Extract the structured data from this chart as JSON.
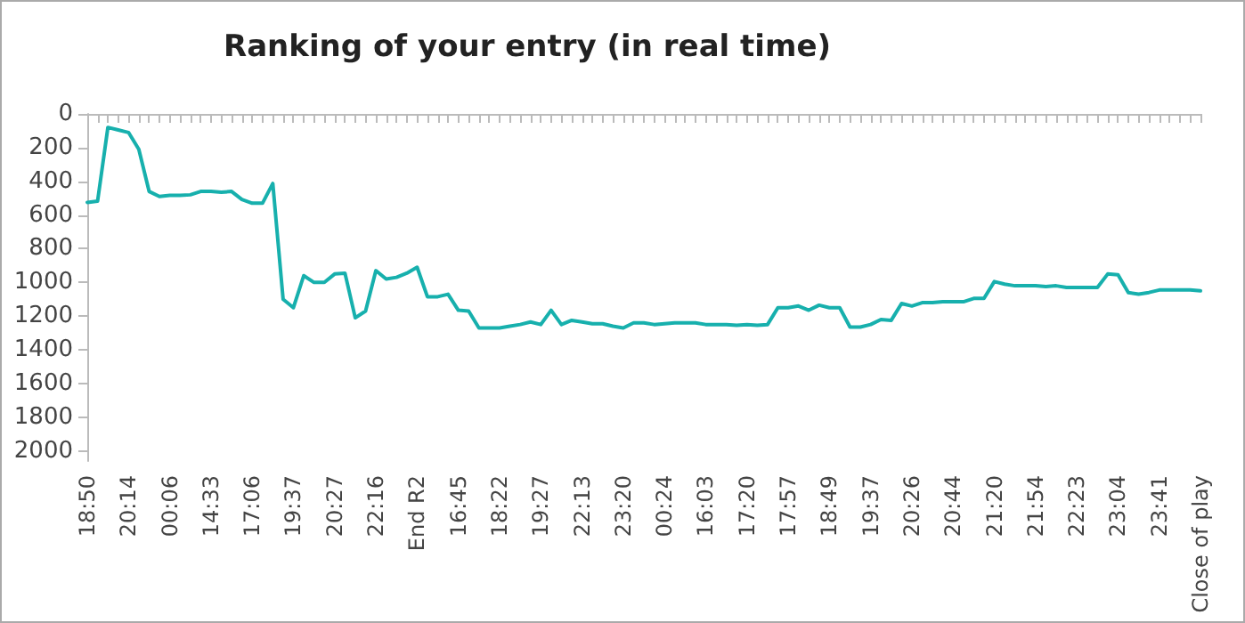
{
  "chart_data": {
    "type": "line",
    "title": "Ranking of your entry (in real time)",
    "categories": [
      "18:50",
      null,
      null,
      null,
      "20:14",
      null,
      null,
      null,
      "00:06",
      null,
      null,
      null,
      "14:33",
      null,
      null,
      null,
      "17:06",
      null,
      null,
      null,
      "19:37",
      null,
      null,
      null,
      "20:27",
      null,
      null,
      null,
      "22:16",
      null,
      null,
      null,
      "End R2",
      null,
      null,
      null,
      "16:45",
      null,
      null,
      null,
      "18:22",
      null,
      null,
      null,
      "19:27",
      null,
      null,
      null,
      "22:13",
      null,
      null,
      null,
      "23:20",
      null,
      null,
      null,
      "00:24",
      null,
      null,
      null,
      "16:03",
      null,
      null,
      null,
      "17:20",
      null,
      null,
      null,
      "17:57",
      null,
      null,
      null,
      "18:49",
      null,
      null,
      null,
      "19:37",
      null,
      null,
      null,
      "20:26",
      null,
      null,
      null,
      "20:44",
      null,
      null,
      null,
      "21:20",
      null,
      null,
      null,
      "21:54",
      null,
      null,
      null,
      "22:23",
      null,
      null,
      null,
      "23:04",
      null,
      null,
      null,
      "23:41",
      null,
      null,
      null,
      "Close of play"
    ],
    "series": [
      {
        "color": "#17b0ad",
        "values": [
          525,
          518,
          80,
          95,
          110,
          210,
          460,
          490,
          483,
          483,
          480,
          460,
          460,
          465,
          460,
          508,
          530,
          530,
          413,
          1100,
          1150,
          960,
          1000,
          1000,
          950,
          945,
          1210,
          1170,
          930,
          980,
          970,
          945,
          910,
          1085,
          1085,
          1070,
          1165,
          1170,
          1270,
          1270,
          1270,
          1260,
          1250,
          1235,
          1250,
          1165,
          1250,
          1225,
          1235,
          1245,
          1245,
          1260,
          1270,
          1240,
          1240,
          1250,
          1245,
          1240,
          1240,
          1240,
          1250,
          1250,
          1250,
          1255,
          1250,
          1255,
          1250,
          1150,
          1150,
          1140,
          1165,
          1135,
          1150,
          1150,
          1265,
          1265,
          1250,
          1220,
          1225,
          1125,
          1140,
          1120,
          1120,
          1115,
          1115,
          1115,
          1095,
          1095,
          995,
          1010,
          1020,
          1020,
          1020,
          1025,
          1020,
          1030,
          1030,
          1030,
          1030,
          950,
          955,
          1060,
          1070,
          1060,
          1045,
          1045,
          1045,
          1045,
          1050
        ]
      }
    ],
    "ylim": [
      2060,
      0
    ],
    "yticks": [
      0,
      200,
      400,
      600,
      800,
      1000,
      1200,
      1400,
      1600,
      1800,
      2000
    ],
    "marker": "none",
    "line_style": "solid"
  }
}
